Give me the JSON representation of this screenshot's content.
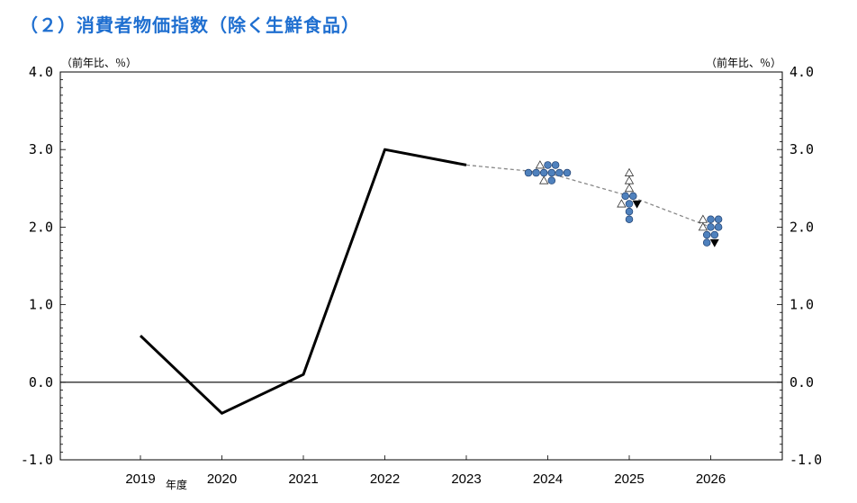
{
  "title": "（２）消費者物価指数（除く生鮮食品）",
  "chart_data": {
    "type": "line",
    "title": "（２）消費者物価指数（除く生鮮食品）",
    "unit_left": "（前年比、％）",
    "unit_right": "（前年比、％）",
    "x_axis_label": "年度",
    "categories": [
      "2019",
      "2020",
      "2021",
      "2022",
      "2023",
      "2024",
      "2025",
      "2026"
    ],
    "ylim": [
      -1.0,
      4.0
    ],
    "y_ticks": [
      "-1.0",
      "0.0",
      "1.0",
      "2.0",
      "3.0",
      "4.0"
    ],
    "y_tick_values": [
      -1.0,
      0.0,
      1.0,
      2.0,
      3.0,
      4.0
    ],
    "grid": false,
    "zero_line": true,
    "series": [
      {
        "style": "solid",
        "color": "#000000",
        "points": [
          {
            "x": "2019",
            "y": 0.6
          },
          {
            "x": "2020",
            "y": -0.4
          },
          {
            "x": "2021",
            "y": 0.1
          },
          {
            "x": "2022",
            "y": 3.0
          },
          {
            "x": "2023",
            "y": 2.8
          }
        ]
      },
      {
        "style": "dashed",
        "color": "#888888",
        "points": [
          {
            "x": "2023",
            "y": 2.8
          },
          {
            "x": "2024",
            "y": 2.7
          },
          {
            "x": "2025",
            "y": 2.4
          },
          {
            "x": "2026",
            "y": 2.0
          }
        ]
      }
    ],
    "forecast_points": [
      {
        "year": "2024",
        "marker": "circle",
        "values": [
          2.7,
          2.7,
          2.7,
          2.7,
          2.7,
          2.7,
          2.6,
          2.8,
          2.8
        ]
      },
      {
        "year": "2024",
        "marker": "triangle-up-open",
        "values": [
          2.8,
          2.6
        ]
      },
      {
        "year": "2025",
        "marker": "circle",
        "values": [
          2.4,
          2.4,
          2.3,
          2.2,
          2.1
        ]
      },
      {
        "year": "2025",
        "marker": "triangle-up-open",
        "values": [
          2.7,
          2.6,
          2.5,
          2.3
        ]
      },
      {
        "year": "2025",
        "marker": "triangle-down-filled",
        "values": [
          2.3
        ]
      },
      {
        "year": "2026",
        "marker": "circle",
        "values": [
          2.1,
          2.1,
          2.0,
          2.0,
          1.9,
          1.9,
          1.8
        ]
      },
      {
        "year": "2026",
        "marker": "triangle-up-open",
        "values": [
          2.1,
          2.0
        ]
      },
      {
        "year": "2026",
        "marker": "triangle-down-filled",
        "values": [
          1.8
        ]
      }
    ],
    "colors": {
      "title": "#1f6fd0",
      "circle_fill": "#4f81bd",
      "circle_stroke": "#1f3f6f",
      "line": "#000000",
      "dashed": "#888888"
    }
  }
}
